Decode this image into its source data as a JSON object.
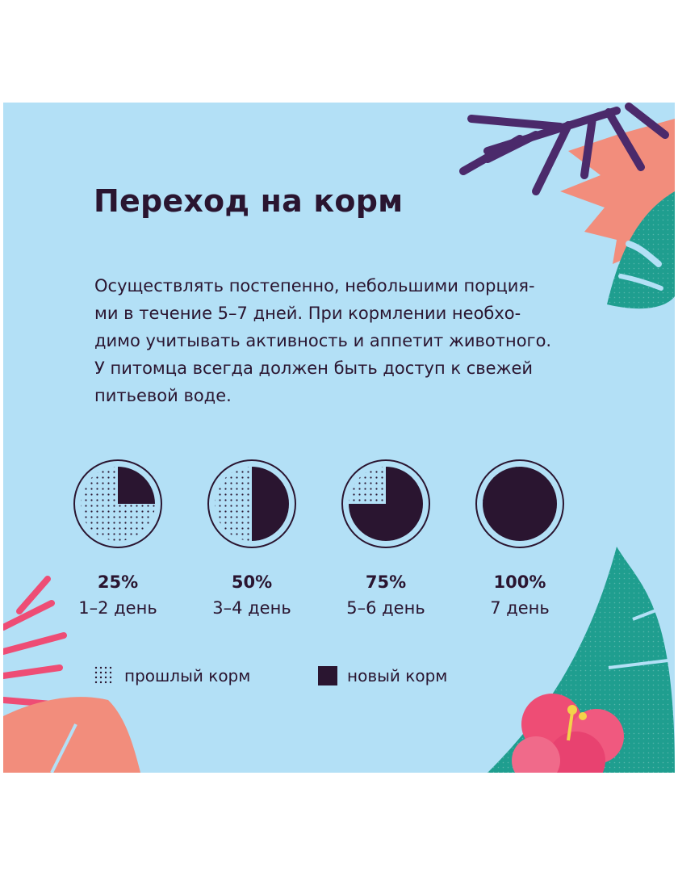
{
  "title": "Переход на корм",
  "description": [
    "Осуществлять постепенно, небольшими порция-",
    "ми в течение 5–7 дней. При кормлении необхо-",
    "димо учитывать активность и аппетит животного.",
    "У питомца всегда должен быть доступ к свежей",
    "питьевой воде."
  ],
  "stages": [
    {
      "percent": "25%",
      "days": "1–2 день",
      "new_fraction": 0.25
    },
    {
      "percent": "50%",
      "days": "3–4 день",
      "new_fraction": 0.5
    },
    {
      "percent": "75%",
      "days": "5–6 день",
      "new_fraction": 0.75
    },
    {
      "percent": "100%",
      "days": "7 день",
      "new_fraction": 1.0
    }
  ],
  "legend": {
    "old_food": "прошлый корм",
    "new_food": "новый корм"
  },
  "colors": {
    "background": "#b3e0f6",
    "ink": "#2a1530",
    "coral": "#f28d7c",
    "pink": "#ee4d75",
    "teal": "#1f9e8f",
    "purple": "#4b2a6b"
  }
}
